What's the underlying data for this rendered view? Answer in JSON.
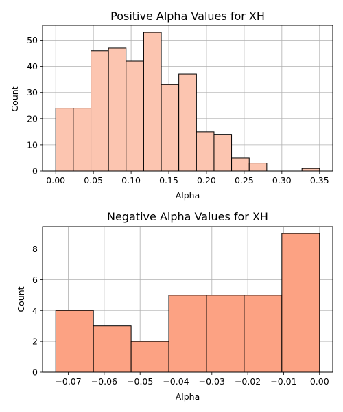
{
  "chart_data": [
    {
      "type": "bar",
      "title": "Positive Alpha Values for XH",
      "xlabel": "Alpha",
      "ylabel": "Count",
      "bin_edges": [
        0.0,
        0.0233,
        0.0467,
        0.07,
        0.0933,
        0.1167,
        0.14,
        0.1633,
        0.1867,
        0.21,
        0.2333,
        0.2567,
        0.28,
        0.3033,
        0.3267,
        0.35
      ],
      "values": [
        24,
        24,
        46,
        47,
        42,
        53,
        33,
        37,
        15,
        14,
        5,
        3,
        0,
        0,
        1
      ],
      "xlim": [
        -0.0175,
        0.3675
      ],
      "ylim": [
        0,
        55.65
      ],
      "xticks": [
        0.0,
        0.05,
        0.1,
        0.15,
        0.2,
        0.25,
        0.3,
        0.35
      ],
      "xtick_labels": [
        "0.00",
        "0.05",
        "0.10",
        "0.15",
        "0.20",
        "0.25",
        "0.30",
        "0.35"
      ],
      "yticks": [
        0,
        10,
        20,
        30,
        40,
        50
      ],
      "ytick_labels": [
        "0",
        "10",
        "20",
        "30",
        "40",
        "50"
      ],
      "grid": true,
      "bar_color": "#fcc5b0",
      "edge_color": "#000000"
    },
    {
      "type": "bar",
      "title": "Negative Alpha Values for XH",
      "xlabel": "Alpha",
      "ylabel": "Count",
      "bin_edges": [
        -0.0735,
        -0.063,
        -0.0525,
        -0.042,
        -0.0315,
        -0.021,
        -0.0105,
        0.0
      ],
      "values": [
        4,
        3,
        2,
        5,
        5,
        5,
        9
      ],
      "xlim": [
        -0.07718,
        0.00368
      ],
      "ylim": [
        0,
        9.45
      ],
      "xticks": [
        -0.07,
        -0.06,
        -0.05,
        -0.04,
        -0.03,
        -0.02,
        -0.01,
        0.0
      ],
      "xtick_labels": [
        "−0.07",
        "−0.06",
        "−0.05",
        "−0.04",
        "−0.03",
        "−0.02",
        "−0.01",
        "0.00"
      ],
      "yticks": [
        0,
        2,
        4,
        6,
        8
      ],
      "ytick_labels": [
        "0",
        "2",
        "4",
        "6",
        "8"
      ],
      "grid": true,
      "bar_color": "#fca283",
      "edge_color": "#000000"
    }
  ]
}
